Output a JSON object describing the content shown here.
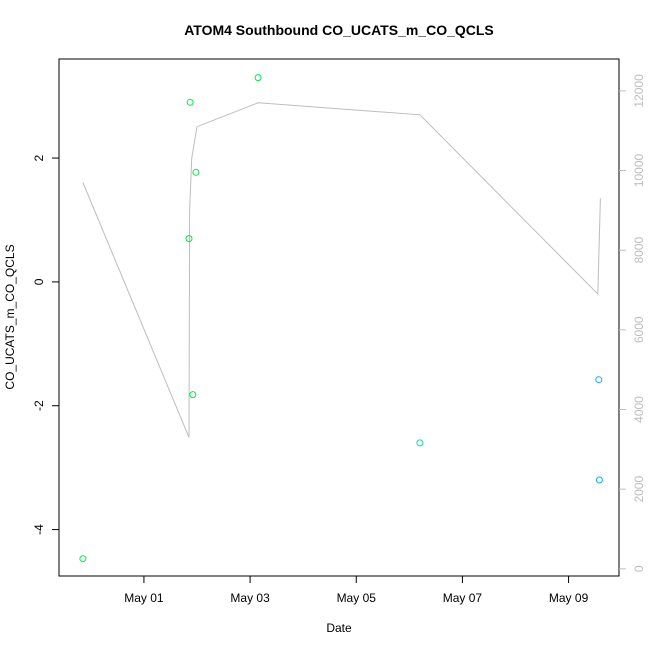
{
  "chart_data": {
    "type": "scatter",
    "title": "ATOM4 Southbound CO_UCATS_m_CO_QCLS",
    "xlabel": "Date",
    "ylabel": "CO_UCATS_m_CO_QCLS",
    "x_ticks": [
      "May 01",
      "May 03",
      "May 05",
      "May 07",
      "May 09"
    ],
    "x_tick_day_values": [
      1,
      3,
      5,
      7,
      9
    ],
    "xlim_days": [
      -0.6,
      9.95
    ],
    "ylim": [
      -4.75,
      3.6
    ],
    "y_ticks": [
      -4,
      -2,
      0,
      2
    ],
    "y_tick_labels": [
      "-4",
      "-2",
      "0",
      "2"
    ],
    "right_axis": {
      "ylim": [
        -180,
        12800
      ],
      "ticks": [
        0,
        2000,
        4000,
        6000,
        8000,
        10000,
        12000
      ],
      "tick_labels": [
        "0",
        "2000",
        "4000",
        "6000",
        "8000",
        "10000",
        "12000"
      ],
      "color": "#bdbdbd"
    },
    "series": [
      {
        "points": [
          {
            "day": -0.15,
            "y": -4.47,
            "color": "#00e84a"
          },
          {
            "day": 1.85,
            "y": 0.7,
            "color": "#00e84a"
          },
          {
            "day": 1.87,
            "y": 2.9,
            "color": "#00e84a"
          },
          {
            "day": 1.92,
            "y": -1.82,
            "color": "#00e84a"
          },
          {
            "day": 1.98,
            "y": 1.77,
            "color": "#00e84a"
          },
          {
            "day": 3.15,
            "y": 3.3,
            "color": "#00e84a"
          },
          {
            "day": 6.2,
            "y": -2.6,
            "color": "#00e0b0"
          },
          {
            "day": 9.57,
            "y": -1.58,
            "color": "#00b8e8"
          },
          {
            "day": 9.58,
            "y": -3.2,
            "color": "#00b8e8"
          }
        ]
      }
    ],
    "altitude_trace": [
      {
        "day": -0.15,
        "alt": 9700
      },
      {
        "day": 1.85,
        "alt": 3300
      },
      {
        "day": 1.86,
        "alt": 9000
      },
      {
        "day": 1.9,
        "alt": 10300
      },
      {
        "day": 2.0,
        "alt": 11100
      },
      {
        "day": 3.15,
        "alt": 11700
      },
      {
        "day": 6.2,
        "alt": 11400
      },
      {
        "day": 9.55,
        "alt": 6900
      },
      {
        "day": 9.6,
        "alt": 9300
      }
    ]
  }
}
